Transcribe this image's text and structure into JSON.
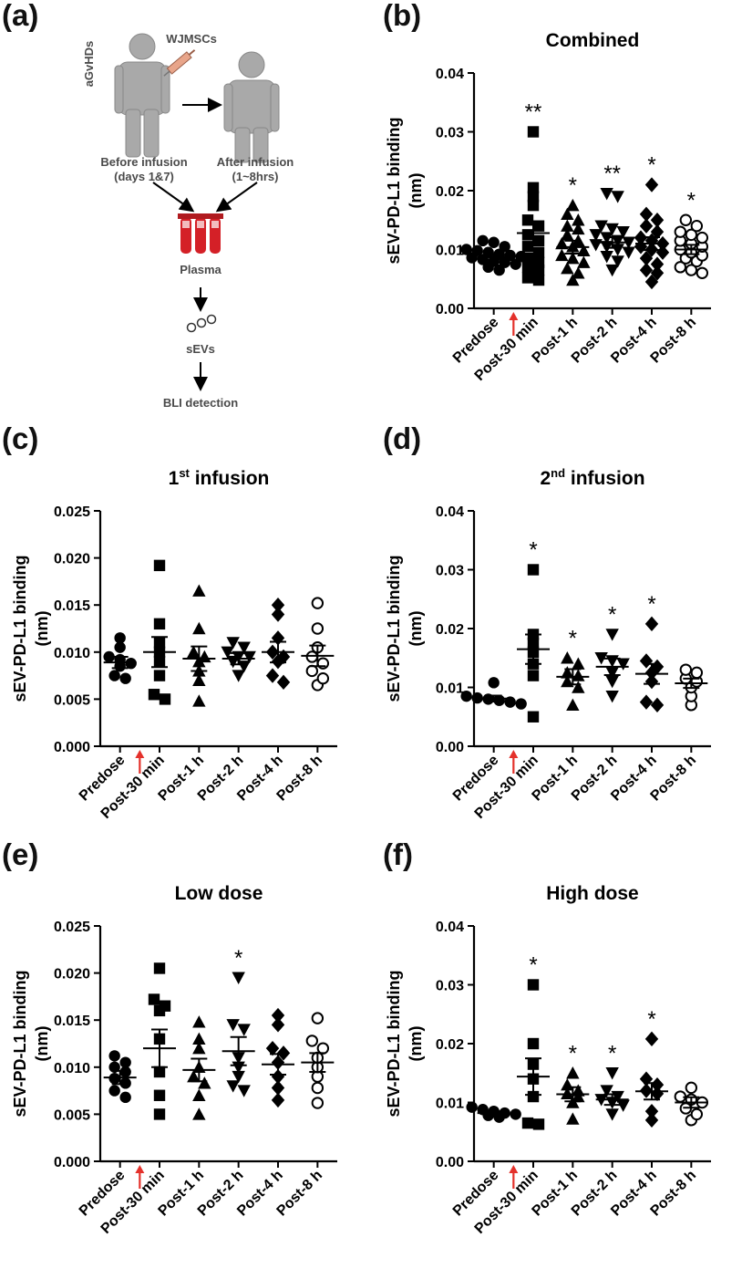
{
  "panel_labels": [
    "(a)",
    "(b)",
    "(c)",
    "(d)",
    "(e)",
    "(f)"
  ],
  "schematic": {
    "condition": "aGvHDs",
    "injection": "WJMSCs",
    "before_line1": "Before infusion",
    "before_line2": "(days 1&7)",
    "after_line1": "After infusion",
    "after_line2": "(1~8hrs)",
    "plasma": "Plasma",
    "sevs": "sEVs",
    "detection": "BLI detection"
  },
  "colors": {
    "figure": "#a9a9a9",
    "tube": "#d42027",
    "arrow_red": "#e4312b",
    "marker": "#000000"
  },
  "chart_data": [
    {
      "panel": "(b)",
      "type": "scatter",
      "title": "Combined",
      "title_sup": "",
      "ylabel": "sEV-PD-L1 binding (nm)",
      "ylim": [
        0,
        0.04
      ],
      "yticks": [
        "0.00",
        "0.01",
        "0.02",
        "0.03",
        "0.04"
      ],
      "categories": [
        "Predose",
        "Post-30 min",
        "Post-1 h",
        "Post-2 h",
        "Post-4 h",
        "Post-8 h"
      ],
      "markers": [
        "circle",
        "square",
        "triangle",
        "triangle-down",
        "diamond",
        "circle-open"
      ],
      "significance": [
        "",
        "**",
        "*",
        "**",
        "*",
        "*"
      ],
      "means": [
        0.0087,
        0.0128,
        0.0104,
        0.0112,
        0.011,
        0.01
      ],
      "sem": [
        0.0004,
        0.0018,
        0.0011,
        0.0009,
        0.0011,
        0.0008
      ],
      "values": [
        [
          0.0065,
          0.007,
          0.0075,
          0.0078,
          0.008,
          0.0083,
          0.0086,
          0.0088,
          0.009,
          0.0092,
          0.0095,
          0.0098,
          0.01,
          0.0105,
          0.0112,
          0.0115
        ],
        [
          0.0048,
          0.0052,
          0.0065,
          0.007,
          0.0078,
          0.0085,
          0.0095,
          0.0105,
          0.0115,
          0.0125,
          0.014,
          0.015,
          0.0175,
          0.019,
          0.0205,
          0.03
        ],
        [
          0.0048,
          0.006,
          0.0068,
          0.0078,
          0.0085,
          0.009,
          0.0098,
          0.0105,
          0.011,
          0.0115,
          0.0125,
          0.0135,
          0.014,
          0.015,
          0.016,
          0.0175
        ],
        [
          0.0065,
          0.008,
          0.0088,
          0.0095,
          0.01,
          0.0105,
          0.0108,
          0.0112,
          0.0115,
          0.012,
          0.0125,
          0.013,
          0.0135,
          0.014,
          0.019,
          0.0195
        ],
        [
          0.0045,
          0.006,
          0.0065,
          0.0075,
          0.0085,
          0.0095,
          0.01,
          0.0105,
          0.011,
          0.0115,
          0.012,
          0.013,
          0.014,
          0.015,
          0.016,
          0.021
        ],
        [
          0.006,
          0.0065,
          0.007,
          0.008,
          0.0085,
          0.009,
          0.0095,
          0.01,
          0.0105,
          0.011,
          0.0115,
          0.012,
          0.0125,
          0.013,
          0.014,
          0.015
        ]
      ],
      "arrow_category": "Predose"
    },
    {
      "panel": "(c)",
      "type": "scatter",
      "title": "1",
      "title_sup": "st",
      "title_rest": " infusion",
      "ylabel": "sEV-PD-L1 binding (nm)",
      "ylim": [
        0,
        0.025
      ],
      "yticks": [
        "0.000",
        "0.005",
        "0.010",
        "0.015",
        "0.020",
        "0.025"
      ],
      "categories": [
        "Predose",
        "Post-30 min",
        "Post-1 h",
        "Post-2 h",
        "Post-4 h",
        "Post-8 h"
      ],
      "markers": [
        "circle",
        "square",
        "triangle",
        "triangle-down",
        "diamond",
        "circle-open"
      ],
      "significance": [
        "",
        "",
        "",
        "",
        "",
        ""
      ],
      "means": [
        0.0089,
        0.01,
        0.0093,
        0.0093,
        0.01,
        0.0096
      ],
      "sem": [
        0.0006,
        0.0016,
        0.0013,
        0.0006,
        0.0011,
        0.0011
      ],
      "values": [
        [
          0.0072,
          0.0075,
          0.0085,
          0.0088,
          0.0092,
          0.0095,
          0.0105,
          0.0115
        ],
        [
          0.005,
          0.0055,
          0.0075,
          0.009,
          0.01,
          0.011,
          0.013,
          0.0192
        ],
        [
          0.0048,
          0.007,
          0.008,
          0.009,
          0.0095,
          0.01,
          0.0125,
          0.0165
        ],
        [
          0.0075,
          0.0085,
          0.009,
          0.0095,
          0.0095,
          0.01,
          0.0105,
          0.011
        ],
        [
          0.0068,
          0.0075,
          0.009,
          0.0095,
          0.01,
          0.0115,
          0.014,
          0.015
        ],
        [
          0.0065,
          0.0072,
          0.008,
          0.0088,
          0.0095,
          0.0105,
          0.0125,
          0.0152
        ]
      ],
      "arrow_category": "Predose"
    },
    {
      "panel": "(d)",
      "type": "scatter",
      "title": "2",
      "title_sup": "nd",
      "title_rest": " infusion",
      "ylabel": "sEV-PD-L1 binding (nm)",
      "ylim": [
        0,
        0.04
      ],
      "yticks": [
        "0.00",
        "0.01",
        "0.02",
        "0.03",
        "0.04"
      ],
      "categories": [
        "Predose",
        "Post-30 min",
        "Post-1 h",
        "Post-2 h",
        "Post-4 h",
        "Post-8 h"
      ],
      "markers": [
        "circle",
        "square",
        "triangle",
        "triangle-down",
        "diamond",
        "circle-open"
      ],
      "significance": [
        "",
        "*",
        "*",
        "*",
        "*",
        ""
      ],
      "means": [
        0.0081,
        0.0165,
        0.0118,
        0.0135,
        0.0123,
        0.0107
      ],
      "sem": [
        0.0005,
        0.0025,
        0.0013,
        0.0014,
        0.0017,
        0.0008
      ],
      "values": [
        [
          0.0072,
          0.0075,
          0.0078,
          0.008,
          0.0082,
          0.0085,
          0.0108
        ],
        [
          0.005,
          0.012,
          0.014,
          0.016,
          0.0175,
          0.019,
          0.03
        ],
        [
          0.007,
          0.01,
          0.011,
          0.012,
          0.0125,
          0.014,
          0.015
        ],
        [
          0.0085,
          0.011,
          0.0125,
          0.014,
          0.0145,
          0.015,
          0.019
        ],
        [
          0.007,
          0.0075,
          0.011,
          0.0125,
          0.0135,
          0.0145,
          0.0208
        ],
        [
          0.007,
          0.0085,
          0.01,
          0.011,
          0.0115,
          0.0125,
          0.013
        ]
      ],
      "arrow_category": "Predose"
    },
    {
      "panel": "(e)",
      "type": "scatter",
      "title": "Low dose",
      "title_sup": "",
      "ylabel": "sEV-PD-L1 binding (nm)",
      "ylim": [
        0,
        0.025
      ],
      "yticks": [
        "0.000",
        "0.005",
        "0.010",
        "0.015",
        "0.020",
        "0.025"
      ],
      "categories": [
        "Predose",
        "Post-30 min",
        "Post-1 h",
        "Post-2 h",
        "Post-4 h",
        "Post-8 h"
      ],
      "markers": [
        "circle",
        "square",
        "triangle",
        "triangle-down",
        "diamond",
        "circle-open"
      ],
      "significance": [
        "",
        "",
        "",
        "*",
        "",
        ""
      ],
      "means": [
        0.0089,
        0.012,
        0.0097,
        0.0117,
        0.0103,
        0.0105
      ],
      "sem": [
        0.0007,
        0.002,
        0.0012,
        0.0015,
        0.0011,
        0.001
      ],
      "values": [
        [
          0.0068,
          0.0075,
          0.0083,
          0.0088,
          0.0095,
          0.01,
          0.0105,
          0.0112
        ],
        [
          0.005,
          0.007,
          0.0095,
          0.013,
          0.016,
          0.0165,
          0.0172,
          0.0205
        ],
        [
          0.005,
          0.007,
          0.0083,
          0.009,
          0.01,
          0.012,
          0.013,
          0.0148
        ],
        [
          0.0075,
          0.008,
          0.009,
          0.01,
          0.011,
          0.014,
          0.0145,
          0.0195
        ],
        [
          0.0065,
          0.0078,
          0.009,
          0.0105,
          0.0115,
          0.012,
          0.0145,
          0.0155
        ],
        [
          0.0062,
          0.0078,
          0.009,
          0.01,
          0.011,
          0.012,
          0.0128,
          0.0152
        ]
      ],
      "arrow_category": "Predose"
    },
    {
      "panel": "(f)",
      "type": "scatter",
      "title": "High dose",
      "title_sup": "",
      "ylabel": "sEV-PD-L1 binding (nm)",
      "ylim": [
        0,
        0.04
      ],
      "yticks": [
        "0.00",
        "0.01",
        "0.02",
        "0.03",
        "0.04"
      ],
      "categories": [
        "Predose",
        "Post-30 min",
        "Post-1 h",
        "Post-2 h",
        "Post-4 h",
        "Post-8 h"
      ],
      "markers": [
        "circle",
        "square",
        "triangle",
        "triangle-down",
        "diamond",
        "circle-open"
      ],
      "significance": [
        "",
        "*",
        "*",
        "*",
        "*",
        ""
      ],
      "means": [
        0.0082,
        0.0144,
        0.0114,
        0.0105,
        0.0119,
        0.01
      ],
      "sem": [
        0.0003,
        0.0031,
        0.0012,
        0.0009,
        0.0014,
        0.0009
      ],
      "values": [
        [
          0.0075,
          0.0078,
          0.008,
          0.0082,
          0.0085,
          0.0088,
          0.0092
        ],
        [
          0.0063,
          0.0065,
          0.011,
          0.014,
          0.0165,
          0.02,
          0.03
        ],
        [
          0.0072,
          0.01,
          0.011,
          0.0115,
          0.012,
          0.013,
          0.015
        ],
        [
          0.008,
          0.0095,
          0.01,
          0.0105,
          0.011,
          0.012,
          0.015
        ],
        [
          0.007,
          0.0085,
          0.0115,
          0.012,
          0.013,
          0.014,
          0.0208
        ],
        [
          0.007,
          0.008,
          0.009,
          0.01,
          0.0105,
          0.011,
          0.0125
        ]
      ],
      "arrow_category": "Predose"
    }
  ]
}
